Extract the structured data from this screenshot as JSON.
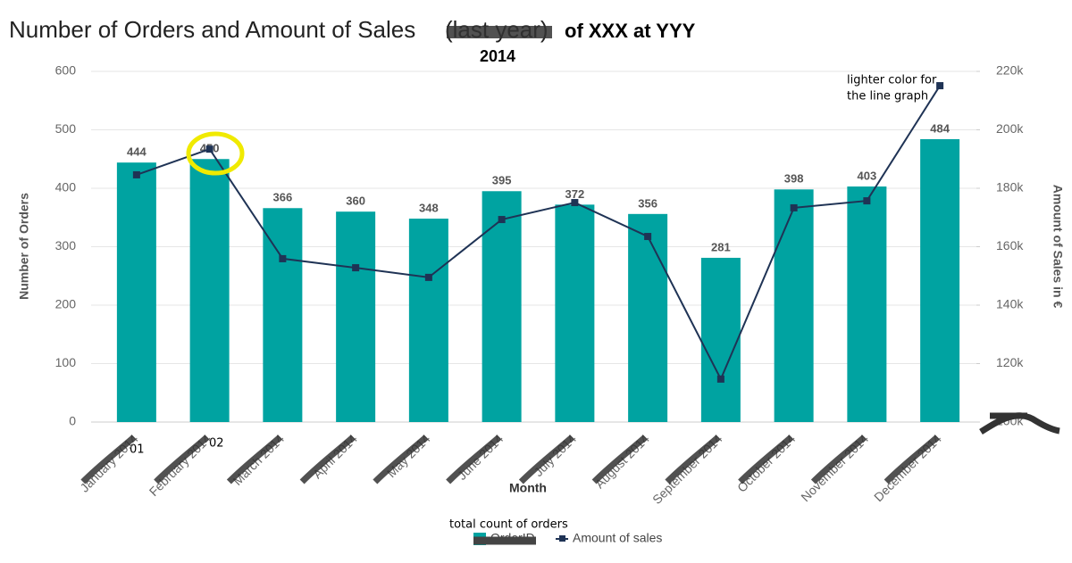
{
  "chart_data": {
    "type": "bar-line",
    "title": "Number of Orders and Amount of Sales",
    "title_struck": "(last year)",
    "title_suffix": "of XXX at YYY",
    "subtitle": "2014",
    "x_label": "Month",
    "y_label": "Number of Orders",
    "y2_label": "Amount of Sales in €",
    "categories": [
      "January 2014",
      "February 2014",
      "March 2014",
      "April 2014",
      "May 2014",
      "June 2014",
      "July 2014",
      "August 2014",
      "September 2014",
      "October 2014",
      "November 2014",
      "December 2014"
    ],
    "series": [
      {
        "name": "OrderID",
        "color": "#00a3a1",
        "kind": "bar",
        "values": [
          444,
          450,
          366,
          360,
          348,
          395,
          372,
          356,
          281,
          398,
          403,
          484
        ]
      },
      {
        "name": "Amount of sales",
        "color": "#1f3355",
        "kind": "line",
        "axis": "y2",
        "values": [
          184600,
          193400,
          155900,
          152800,
          149500,
          169300,
          175100,
          163500,
          114700,
          173300,
          175700,
          215100
        ]
      }
    ],
    "ylim": [
      0,
      600
    ],
    "yticks": [
      0,
      100,
      200,
      300,
      400,
      500,
      600
    ],
    "y2lim": [
      100000,
      220000
    ],
    "y2ticks": [
      {
        "value": 100000,
        "label": "100k"
      },
      {
        "value": 120000,
        "label": "120k"
      },
      {
        "value": 140000,
        "label": "140k"
      },
      {
        "value": 160000,
        "label": "160k"
      },
      {
        "value": 180000,
        "label": "180k"
      },
      {
        "value": 200000,
        "label": "200k"
      },
      {
        "value": 220000,
        "label": "220k"
      }
    ],
    "grid": true,
    "annotations": [
      "01",
      "02",
      "lighter color for",
      "the line graph",
      "total count of orders"
    ]
  }
}
